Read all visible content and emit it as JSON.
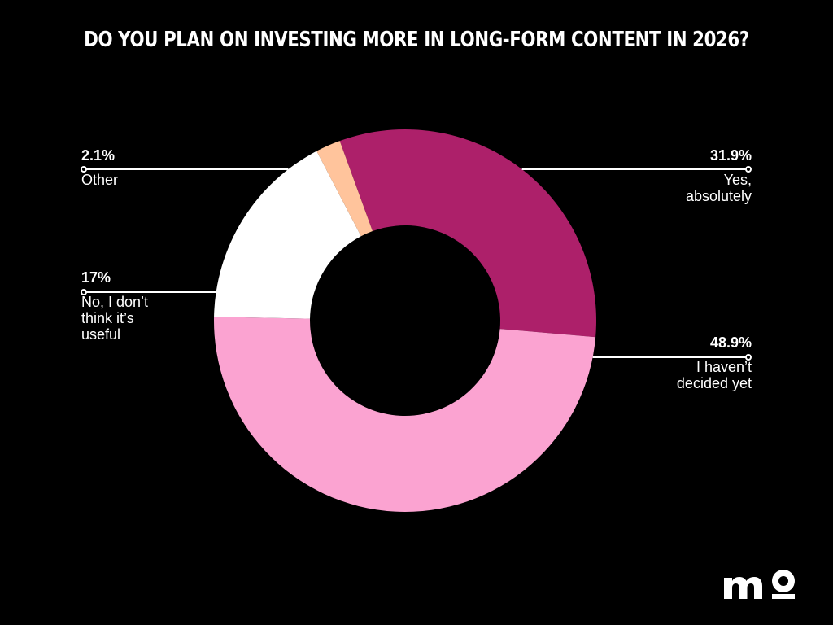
{
  "chart_data": {
    "type": "pie",
    "title": "DO YOU PLAN ON INVESTING MORE IN LONG-FORM CONTENT IN 2026?",
    "donut": true,
    "start_slice_order_clockwise": [
      "Yes, absolutely",
      "I haven’t decided yet",
      "No, I don’t think it’s useful",
      "Other"
    ],
    "slices": [
      {
        "label": "Yes, absolutely",
        "value": 31.9,
        "value_label": "31.9%",
        "color": "#ad206a"
      },
      {
        "label": "I haven’t decided yet",
        "value": 48.9,
        "value_label": "48.9%",
        "color": "#fba3d1"
      },
      {
        "label": "No, I don’t think it’s useful",
        "value": 17,
        "value_label": "17%",
        "color": "#ffffff"
      },
      {
        "label": "Other",
        "value": 2.1,
        "value_label": "2.1%",
        "color": "#ffc49c"
      }
    ],
    "labels_display": {
      "yes": {
        "pct": "31.9%",
        "lines": [
          "Yes,",
          "absolutely"
        ]
      },
      "undecided": {
        "pct": "48.9%",
        "lines": [
          "I haven’t",
          "decided yet"
        ]
      },
      "no": {
        "pct": "17%",
        "lines": [
          "No, I don’t",
          "think it’s",
          "useful"
        ]
      },
      "other": {
        "pct": "2.1%",
        "lines": [
          "Other"
        ]
      }
    }
  },
  "logo": {
    "name": "mo-logo",
    "text": "mo"
  },
  "colors": {
    "background": "#000000",
    "text": "#ffffff"
  }
}
